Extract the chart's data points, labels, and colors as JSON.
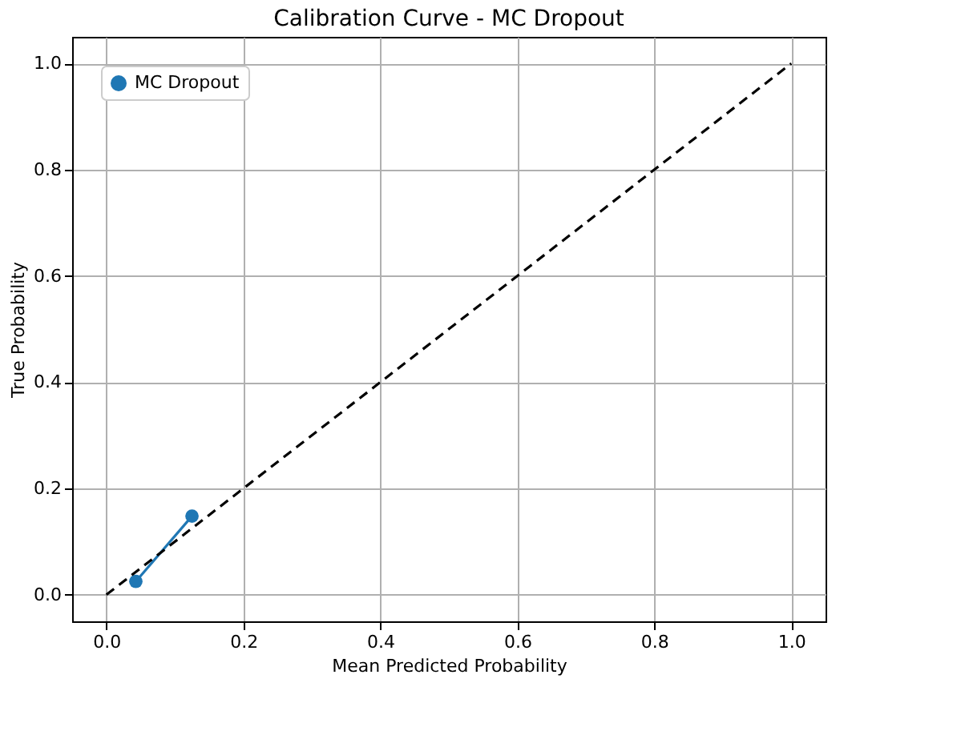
{
  "chart_data": {
    "type": "line",
    "title": "Calibration Curve - MC Dropout",
    "xlabel": "Mean Predicted Probability",
    "ylabel": "True Probability",
    "series": [
      {
        "name": "MC Dropout",
        "color": "#1f77b4",
        "x": [
          0.043,
          0.125
        ],
        "values": [
          0.025,
          0.148
        ],
        "marker": "circle",
        "line_style": "solid"
      },
      {
        "type": "line",
        "color": "#000000",
        "x": [
          0.0,
          1.0
        ],
        "values": [
          0.0,
          1.0
        ],
        "marker": "none",
        "line_style": "dashed"
      }
    ],
    "xlim": [
      -0.05,
      1.05
    ],
    "ylim": [
      -0.05,
      1.05
    ],
    "xticks": [
      {
        "value": 0,
        "label": "0.0"
      },
      0.2,
      0.4,
      0.6,
      0.8,
      {
        "value": 1,
        "label": "1.0"
      }
    ],
    "yticks": [
      {
        "value": 0,
        "label": "0.0"
      },
      0.2,
      0.4,
      0.6,
      0.8,
      {
        "value": 1,
        "label": "1.0"
      }
    ],
    "grid": true,
    "legend": "top left"
  }
}
